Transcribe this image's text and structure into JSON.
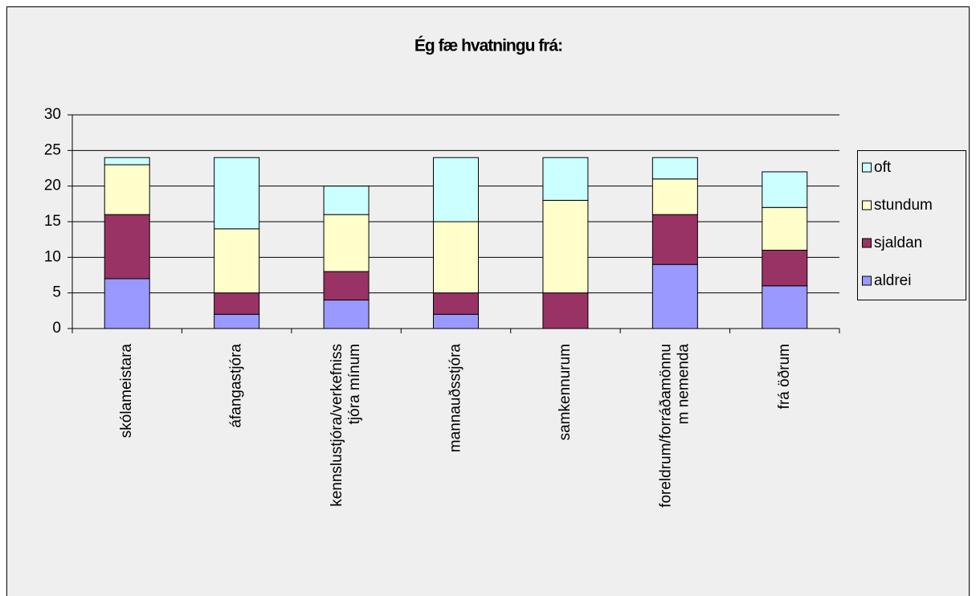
{
  "chart_data": {
    "type": "stacked_bar",
    "title": "Ég fæ hvatningu frá:",
    "categories": [
      "skólameistara",
      "áfangastjóra",
      "kennslustjóra/verkefniss\ntjóra mínum",
      "mannauðsstjóra",
      "samkennurum",
      "foreldrum/forráðamönnu\nm nemenda",
      "frá öðrum"
    ],
    "series": [
      {
        "name": "aldrei",
        "color": "#9999ff",
        "values": [
          7,
          2,
          4,
          2,
          0,
          9,
          6
        ]
      },
      {
        "name": "sjaldan",
        "color": "#993366",
        "values": [
          9,
          3,
          4,
          3,
          5,
          7,
          5
        ]
      },
      {
        "name": "stundum",
        "color": "#ffffcc",
        "values": [
          7,
          9,
          8,
          10,
          13,
          5,
          6
        ]
      },
      {
        "name": "oft",
        "color": "#ccffff",
        "values": [
          1,
          10,
          4,
          9,
          6,
          3,
          5
        ]
      }
    ],
    "ylim": [
      0,
      30
    ],
    "yticks": [
      0,
      5,
      10,
      15,
      20,
      25,
      30
    ],
    "grid": true,
    "legend": "right"
  }
}
